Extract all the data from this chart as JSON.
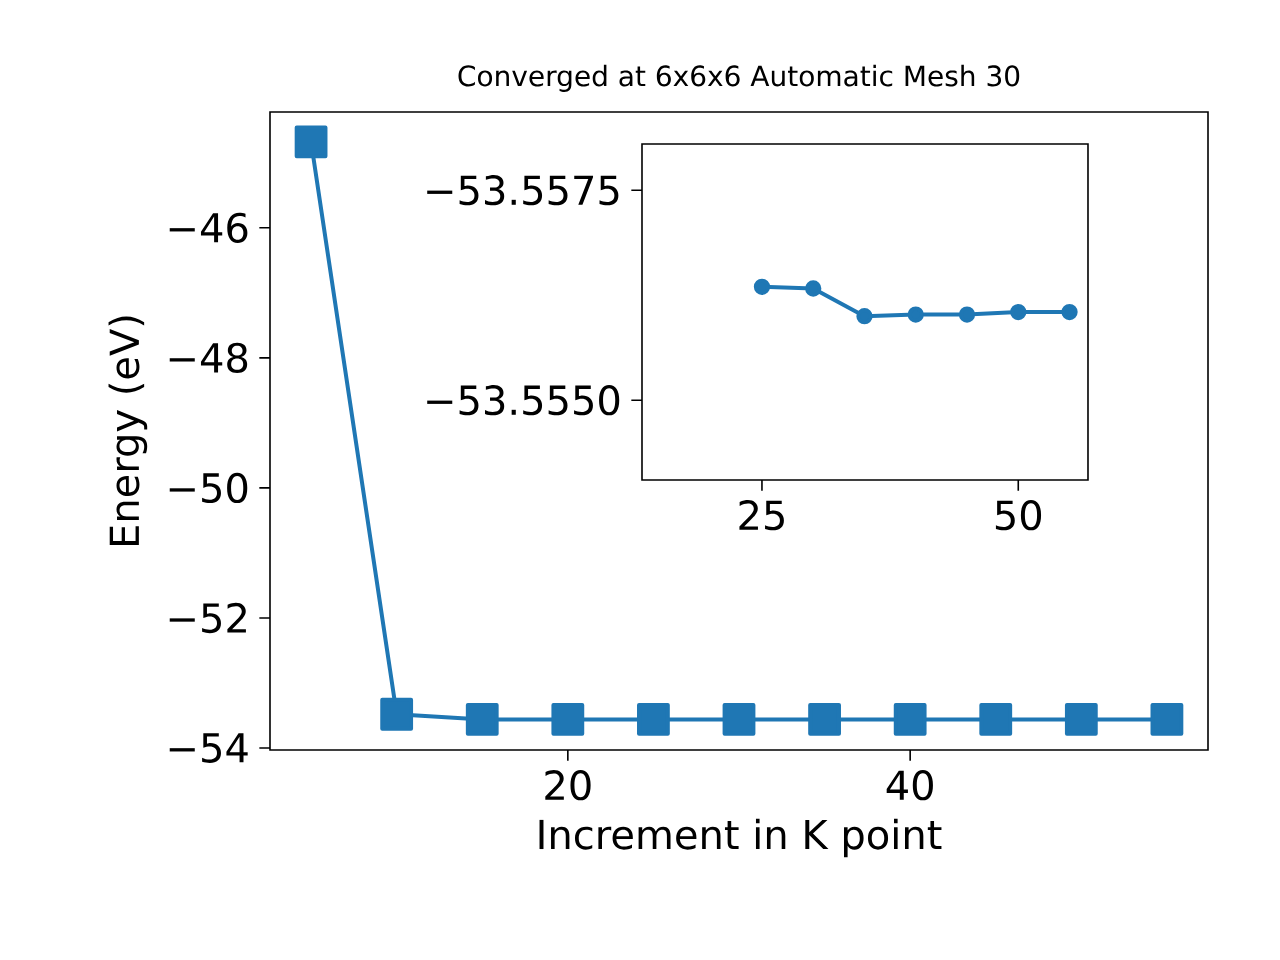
{
  "chart_data": [
    {
      "type": "line",
      "title": "Converged at 6x6x6 Automatic Mesh 30",
      "xlabel": "Increment in K point",
      "ylabel": "Energy (eV)",
      "x": [
        5,
        10,
        15,
        20,
        25,
        30,
        35,
        40,
        45,
        50,
        55
      ],
      "series": [
        {
          "color": "#1f77b4",
          "values": [
            -44.68,
            -53.48,
            -53.56,
            -53.56,
            -53.56,
            -53.56,
            -53.56,
            -53.56,
            -53.56,
            -53.56,
            -53.56
          ]
        }
      ],
      "xlim": [
        2.6,
        57.4
      ],
      "ylim": [
        -54.03,
        -44.22
      ],
      "xticks": [
        20,
        40
      ],
      "yticks": [
        {
          "value": -54,
          "label": "−54"
        },
        {
          "value": -52,
          "label": "−52"
        },
        {
          "value": -50,
          "label": "−50"
        },
        {
          "value": -48,
          "label": "−48"
        },
        {
          "value": -46,
          "label": "−46"
        }
      ],
      "marker": "square",
      "line_style": "solid"
    },
    {
      "type": "line",
      "x": [
        25,
        30,
        35,
        40,
        45,
        50,
        55
      ],
      "series": [
        {
          "color": "#1f77b4",
          "values": [
            -53.55635,
            -53.55633,
            -53.556,
            -53.55602,
            -53.55602,
            -53.55605,
            -53.55605
          ]
        }
      ],
      "xlim": [
        13.3,
        56.8
      ],
      "ylim": [
        -53.55405,
        -53.55805
      ],
      "xticks": [
        25,
        50
      ],
      "yticks": [
        {
          "value": -53.555,
          "label": "−53.5550"
        },
        {
          "value": -53.5575,
          "label": "−53.5575"
        }
      ],
      "marker": "circle",
      "line_style": "solid"
    }
  ]
}
